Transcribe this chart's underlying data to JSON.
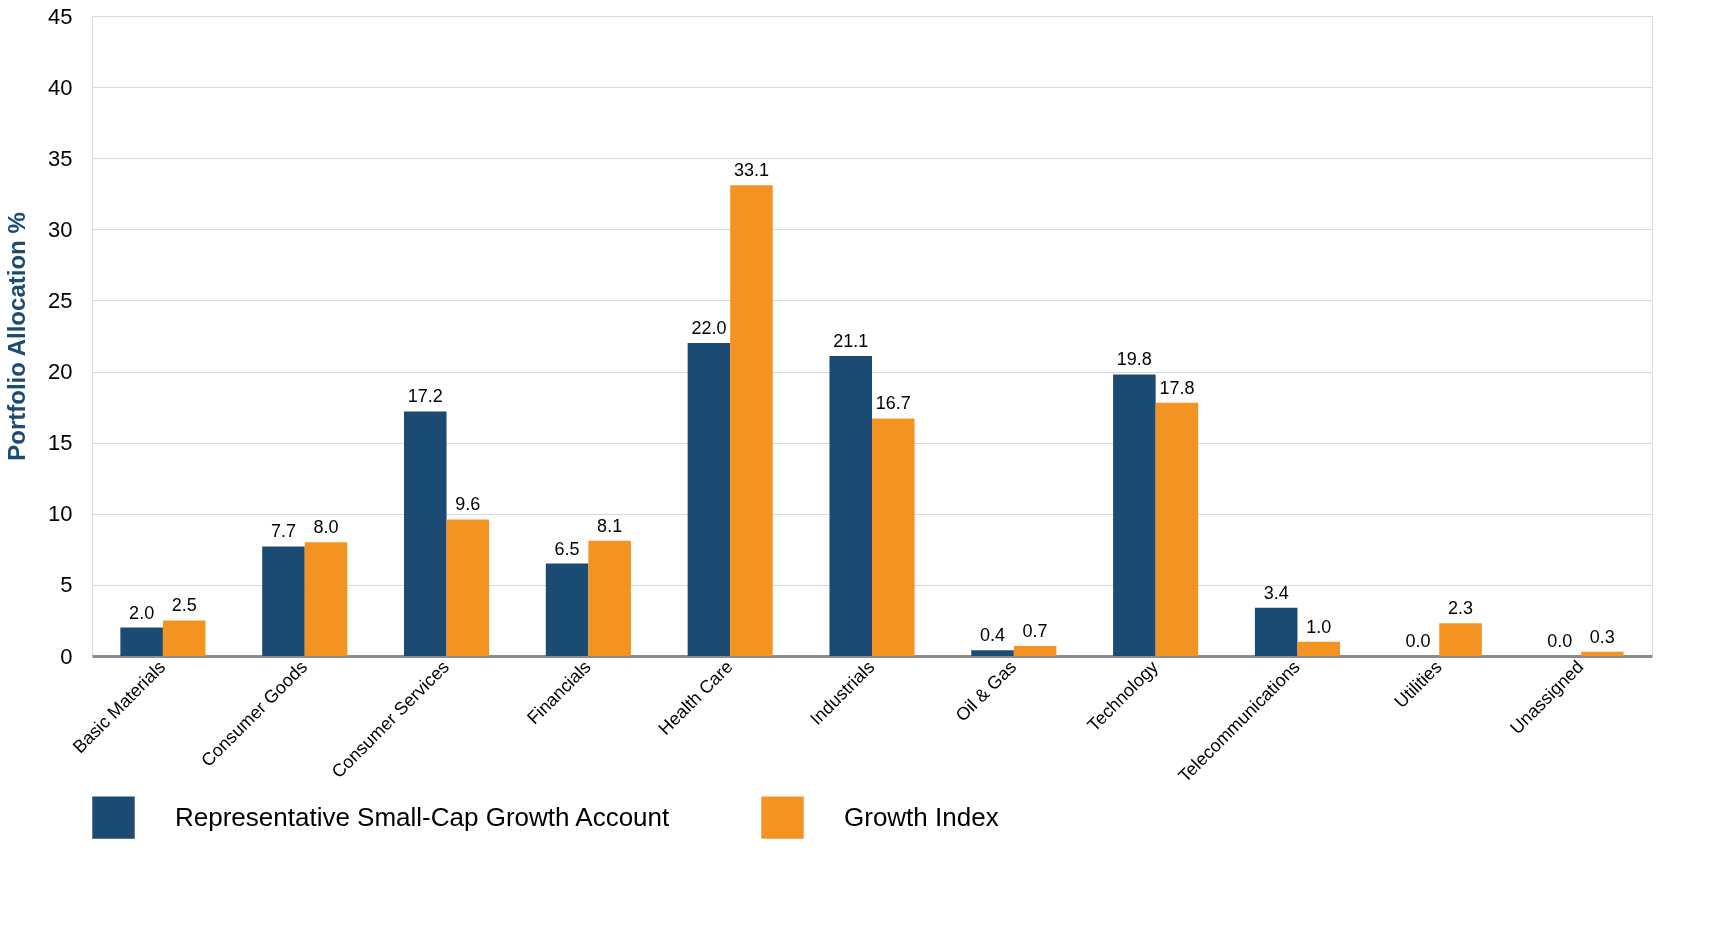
{
  "chart_data": {
    "type": "bar",
    "ylabel": "Portfolio Allocation %",
    "categories": [
      "Basic Materials",
      "Consumer Goods",
      "Consumer Services",
      "Financials",
      "Health Care",
      "Industrials",
      "Oil & Gas",
      "Technology",
      "Telecommunications",
      "Utilities",
      "Unassigned"
    ],
    "series": [
      {
        "name": "Representative Small-Cap Growth Account",
        "color": "#1b4a72",
        "values": [
          2.0,
          7.7,
          17.2,
          6.5,
          22.0,
          21.1,
          0.4,
          19.8,
          3.4,
          0.0,
          0.0
        ],
        "value_labels": [
          "2.0",
          "7.7",
          "17.2",
          "6.5",
          "22.0",
          "21.1",
          "0.4",
          "19.8",
          "3.4",
          "0.0",
          "0.0"
        ]
      },
      {
        "name": "Growth Index",
        "color": "#f39322",
        "values": [
          2.5,
          8.0,
          9.6,
          8.1,
          33.1,
          16.7,
          0.7,
          17.8,
          1.0,
          2.3,
          0.3
        ],
        "value_labels": [
          "2.5",
          "8.0",
          "9.6",
          "8.1",
          "33.1",
          "16.7",
          "0.7",
          "17.8",
          "1.0",
          "2.3",
          "0.3"
        ]
      }
    ],
    "ylim": [
      0,
      45
    ],
    "yticks": [
      0,
      5,
      10,
      15,
      20,
      25,
      30,
      35,
      40,
      45
    ],
    "grid": "y",
    "legend": "bottom"
  }
}
